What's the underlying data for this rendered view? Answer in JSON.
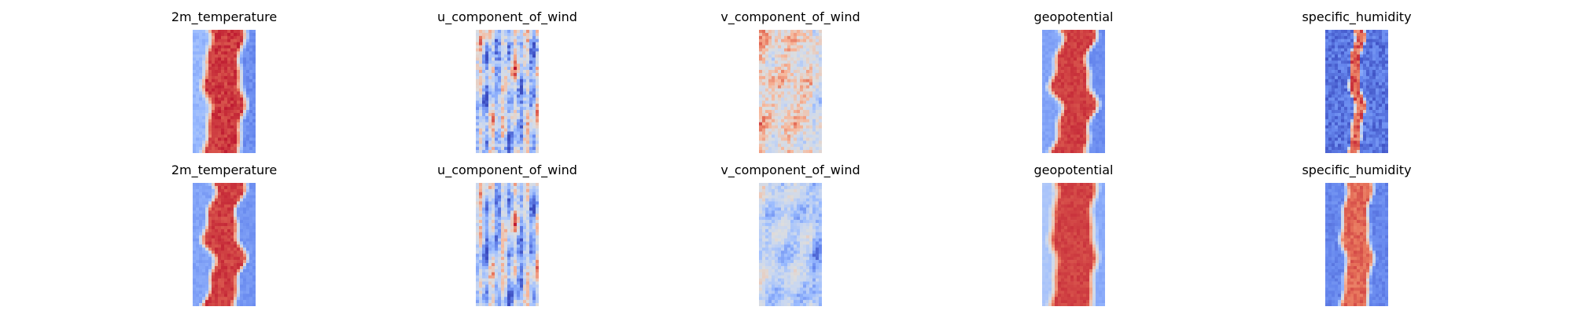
{
  "chart_data": {
    "type": "heatmap",
    "layout": {
      "rows": 2,
      "cols": 5
    },
    "colormap": "coolwarm",
    "colormap_stops": [
      "#3b4cc0",
      "#6788ee",
      "#9abbff",
      "#c9d7f0",
      "#dddddd",
      "#f7b89c",
      "#e7745b",
      "#b40426"
    ],
    "axes_visible": false,
    "panels": [
      {
        "title": "2m_temperature",
        "row": 0,
        "col": 0,
        "pattern": "center_band",
        "band_width": 0.62,
        "band_offset": 0.25,
        "wave": 0.05,
        "noise": 0.08,
        "left_level": 0.28,
        "right_level": 0.16
      },
      {
        "title": "u_component_of_wind",
        "row": 0,
        "col": 1,
        "pattern": "streaks",
        "noise": 0.3,
        "bias": 0.0
      },
      {
        "title": "v_component_of_wind",
        "row": 0,
        "col": 2,
        "pattern": "speckle",
        "noise": 0.28,
        "bias": 0.12
      },
      {
        "title": "geopotential",
        "row": 0,
        "col": 3,
        "pattern": "center_band",
        "band_width": 0.62,
        "band_offset": 0.22,
        "wave": 0.08,
        "noise": 0.05,
        "left_level": 0.22,
        "right_level": 0.16
      },
      {
        "title": "specific_humidity",
        "row": 0,
        "col": 4,
        "pattern": "narrow_band",
        "band_width": 0.18,
        "band_offset": 0.0,
        "wave": 0.04,
        "noise": 0.16,
        "left_level": 0.1,
        "right_level": 0.1
      },
      {
        "title": "2m_temperature",
        "row": 1,
        "col": 0,
        "pattern": "center_band",
        "band_width": 0.55,
        "band_offset": 0.22,
        "wave": 0.08,
        "noise": 0.06,
        "left_level": 0.22,
        "right_level": 0.18
      },
      {
        "title": "u_component_of_wind",
        "row": 1,
        "col": 1,
        "pattern": "streaks",
        "noise": 0.24,
        "bias": -0.02
      },
      {
        "title": "v_component_of_wind",
        "row": 1,
        "col": 2,
        "pattern": "speckle",
        "noise": 0.2,
        "bias": -0.08
      },
      {
        "title": "geopotential",
        "row": 1,
        "col": 3,
        "pattern": "center_band",
        "band_width": 0.72,
        "band_offset": 0.2,
        "wave": 0.04,
        "noise": 0.04,
        "left_level": 0.34,
        "right_level": 0.24
      },
      {
        "title": "specific_humidity",
        "row": 1,
        "col": 4,
        "pattern": "center_band",
        "band_width": 0.46,
        "band_offset": 0.0,
        "wave": 0.04,
        "noise": 0.08,
        "left_level": 0.14,
        "right_level": 0.14
      }
    ]
  }
}
